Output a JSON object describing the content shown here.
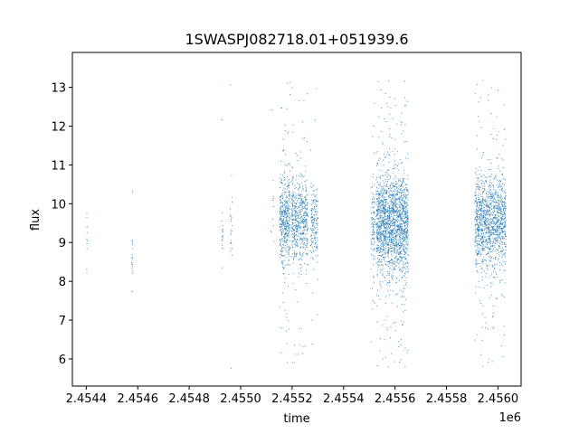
{
  "chart_data": {
    "type": "scatter",
    "title": "1SWASPJ082718.01+051939.6",
    "xlabel": "time",
    "ylabel": "flux",
    "x_offset_label": "1e6",
    "xlim": [
      2454346,
      2456090
    ],
    "ylim": [
      5.3,
      13.9
    ],
    "xticks": [
      2454400,
      2454600,
      2454800,
      2455000,
      2455200,
      2455400,
      2455600,
      2455800,
      2456000
    ],
    "xtick_labels": [
      "2.4544",
      "2.4546",
      "2.4548",
      "2.4550",
      "2.4552",
      "2.4554",
      "2.4556",
      "2.4558",
      "2.4560"
    ],
    "yticks": [
      6,
      7,
      8,
      9,
      10,
      11,
      12,
      13
    ],
    "ytick_labels": [
      "6",
      "7",
      "8",
      "9",
      "10",
      "11",
      "12",
      "13"
    ],
    "grid": false,
    "marker_color": "#1f77b4",
    "series": [
      {
        "clusters": [
          {
            "x_min": 2454400,
            "x_max": 2454402,
            "center": 9.3,
            "spread": 0.35,
            "count": 12,
            "outliers": 0
          },
          {
            "x_min": 2454575,
            "x_max": 2454580,
            "center": 8.6,
            "spread": 0.5,
            "count": 18,
            "outliers": 2
          },
          {
            "x_min": 2454925,
            "x_max": 2454930,
            "center": 9.2,
            "spread": 0.4,
            "count": 16,
            "outliers": 1
          },
          {
            "x_min": 2454958,
            "x_max": 2454966,
            "center": 9.4,
            "spread": 0.45,
            "count": 22,
            "outliers": 2
          },
          {
            "x_min": 2455115,
            "x_max": 2455130,
            "center": 9.8,
            "spread": 0.5,
            "count": 10,
            "outliers": 1
          },
          {
            "x_min": 2455150,
            "x_max": 2455190,
            "center": 9.6,
            "spread": 0.6,
            "count": 420,
            "outliers": 28
          },
          {
            "x_min": 2455195,
            "x_max": 2455260,
            "center": 9.6,
            "spread": 0.55,
            "count": 520,
            "outliers": 22
          },
          {
            "x_min": 2455270,
            "x_max": 2455300,
            "center": 9.5,
            "spread": 0.55,
            "count": 160,
            "outliers": 6
          },
          {
            "x_min": 2455505,
            "x_max": 2455520,
            "center": 9.4,
            "spread": 0.6,
            "count": 90,
            "outliers": 8
          },
          {
            "x_min": 2455525,
            "x_max": 2455650,
            "center": 9.5,
            "spread": 0.65,
            "count": 1700,
            "outliers": 110
          },
          {
            "x_min": 2455908,
            "x_max": 2456030,
            "center": 9.5,
            "spread": 0.6,
            "count": 1200,
            "outliers": 70
          }
        ]
      }
    ]
  }
}
